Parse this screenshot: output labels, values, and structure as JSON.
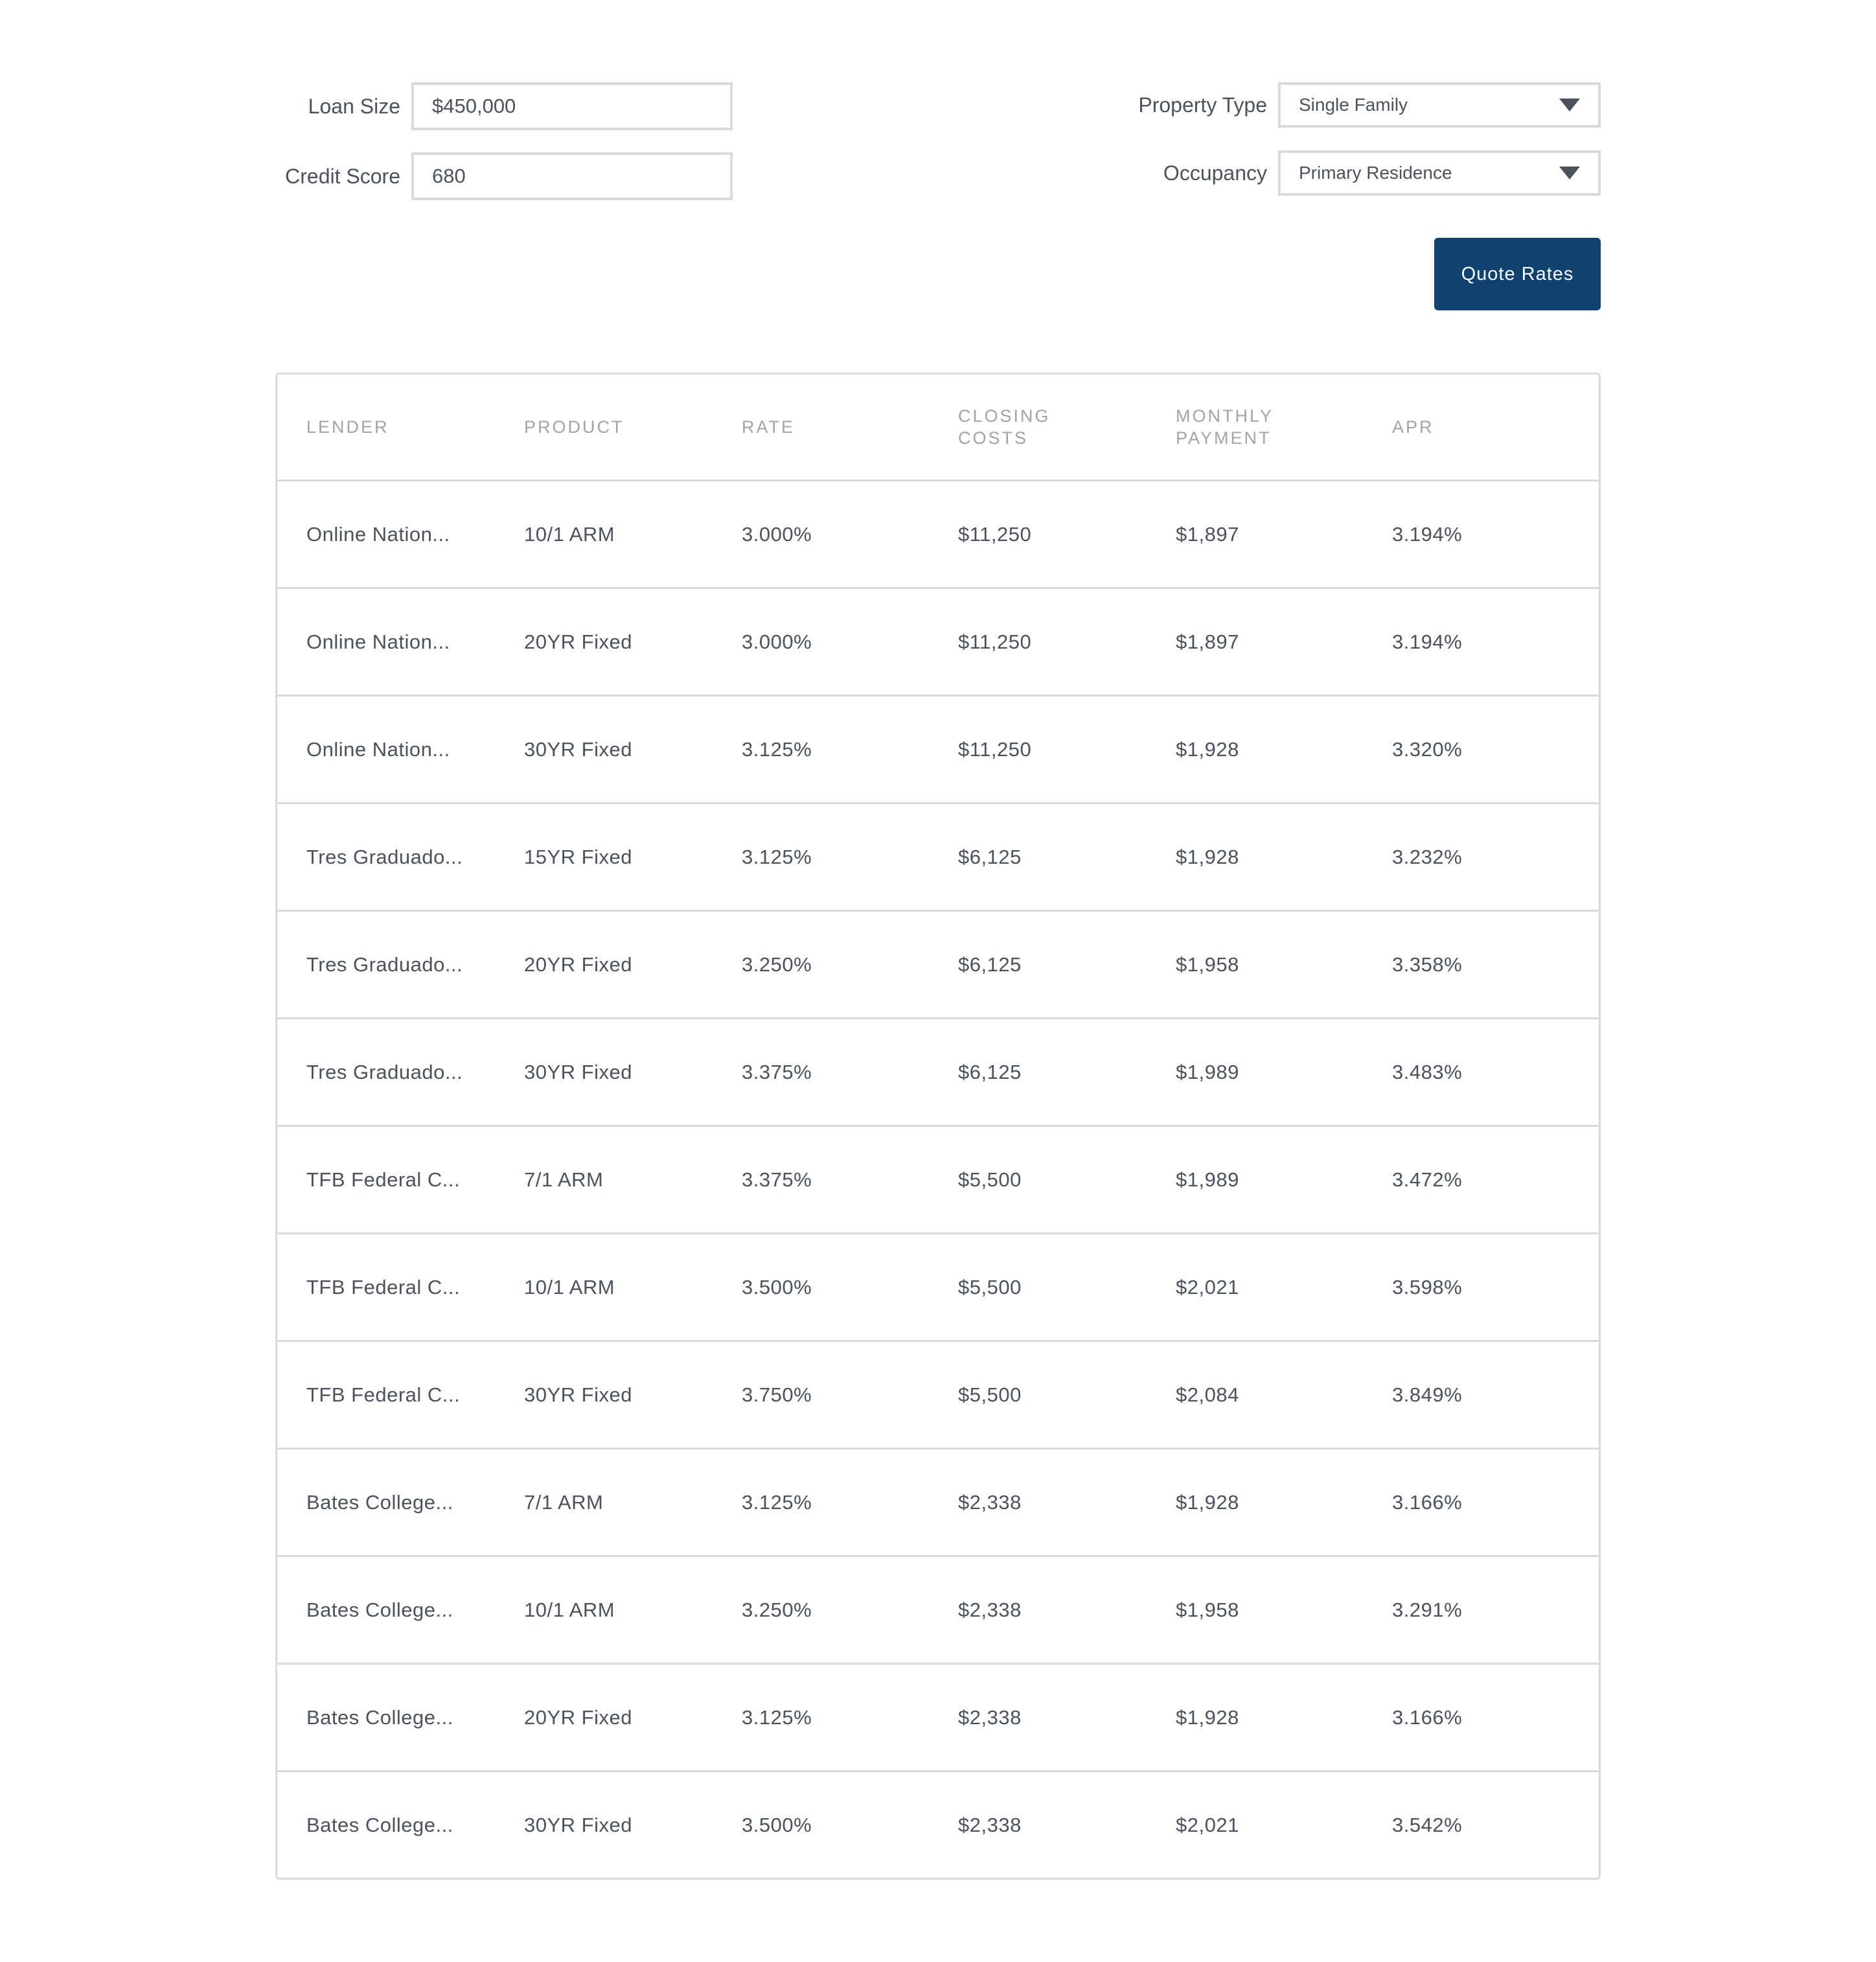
{
  "form": {
    "loan_size": {
      "label": "Loan Size",
      "value": "$450,000"
    },
    "credit_score": {
      "label": "Credit Score",
      "value": "680"
    },
    "property_type": {
      "label": "Property Type",
      "value": "Single Family"
    },
    "occupancy": {
      "label": "Occupancy",
      "value": "Primary Residence"
    },
    "quote_button": "Quote Rates"
  },
  "colors": {
    "accent": "#0f426e",
    "text": "#4a525c",
    "header_text": "#a0a4a8",
    "border": "#dadada"
  },
  "table": {
    "headers": [
      "LENDER",
      "PRODUCT",
      "RATE",
      "CLOSING COSTS",
      "MONTHLY PAYMENT",
      "APR"
    ],
    "rows": [
      [
        "Online Nation...",
        "10/1 ARM",
        "3.000%",
        "$11,250",
        "$1,897",
        "3.194%"
      ],
      [
        "Online Nation...",
        "20YR Fixed",
        "3.000%",
        "$11,250",
        "$1,897",
        "3.194%"
      ],
      [
        "Online Nation...",
        "30YR Fixed",
        "3.125%",
        "$11,250",
        "$1,928",
        "3.320%"
      ],
      [
        "Tres Graduado...",
        "15YR Fixed",
        "3.125%",
        "$6,125",
        "$1,928",
        "3.232%"
      ],
      [
        "Tres Graduado...",
        "20YR Fixed",
        "3.250%",
        "$6,125",
        "$1,958",
        "3.358%"
      ],
      [
        "Tres Graduado...",
        "30YR Fixed",
        "3.375%",
        "$6,125",
        "$1,989",
        "3.483%"
      ],
      [
        "TFB Federal C...",
        "7/1 ARM",
        "3.375%",
        "$5,500",
        "$1,989",
        "3.472%"
      ],
      [
        "TFB Federal C...",
        "10/1 ARM",
        "3.500%",
        "$5,500",
        "$2,021",
        "3.598%"
      ],
      [
        "TFB Federal C...",
        "30YR Fixed",
        "3.750%",
        "$5,500",
        "$2,084",
        "3.849%"
      ],
      [
        "Bates College...",
        "7/1 ARM",
        "3.125%",
        "$2,338",
        "$1,928",
        "3.166%"
      ],
      [
        "Bates College...",
        "10/1 ARM",
        "3.250%",
        "$2,338",
        "$1,958",
        "3.291%"
      ],
      [
        "Bates College...",
        "20YR Fixed",
        "3.125%",
        "$2,338",
        "$1,928",
        "3.166%"
      ],
      [
        "Bates College...",
        "30YR Fixed",
        "3.500%",
        "$2,338",
        "$2,021",
        "3.542%"
      ]
    ]
  }
}
